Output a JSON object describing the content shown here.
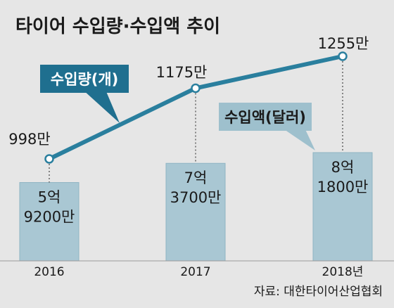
{
  "title": "타이어 수입량·수입액 추이",
  "source": "자료: 대한타이어산업협회",
  "colors": {
    "background": "#e6e6e6",
    "line": "#2a7f9e",
    "bar": "#a9c7d3",
    "bar_edge": "#8fb4c3",
    "label_box_line": "#1f6f8f",
    "label_box_bar": "#9ec0cd",
    "text": "#1a1a1a",
    "dash": "#5a5a5a"
  },
  "chart_data": {
    "type": "bar+line",
    "categories": [
      "2016",
      "2017",
      "2018년"
    ],
    "series": [
      {
        "name": "수입량(개)",
        "kind": "line",
        "values": [
          9980000,
          11750000,
          12550000
        ],
        "value_labels": [
          "998만",
          "1175만",
          "1255만"
        ]
      },
      {
        "name": "수입액(달러)",
        "kind": "bar",
        "values": [
          592000000,
          737000000,
          818000000
        ],
        "value_labels": [
          [
            "5억",
            "9200만"
          ],
          [
            "7억",
            "3700만"
          ],
          [
            "8억",
            "1800만"
          ]
        ]
      }
    ],
    "grid": false,
    "legend": "inline callouts"
  }
}
